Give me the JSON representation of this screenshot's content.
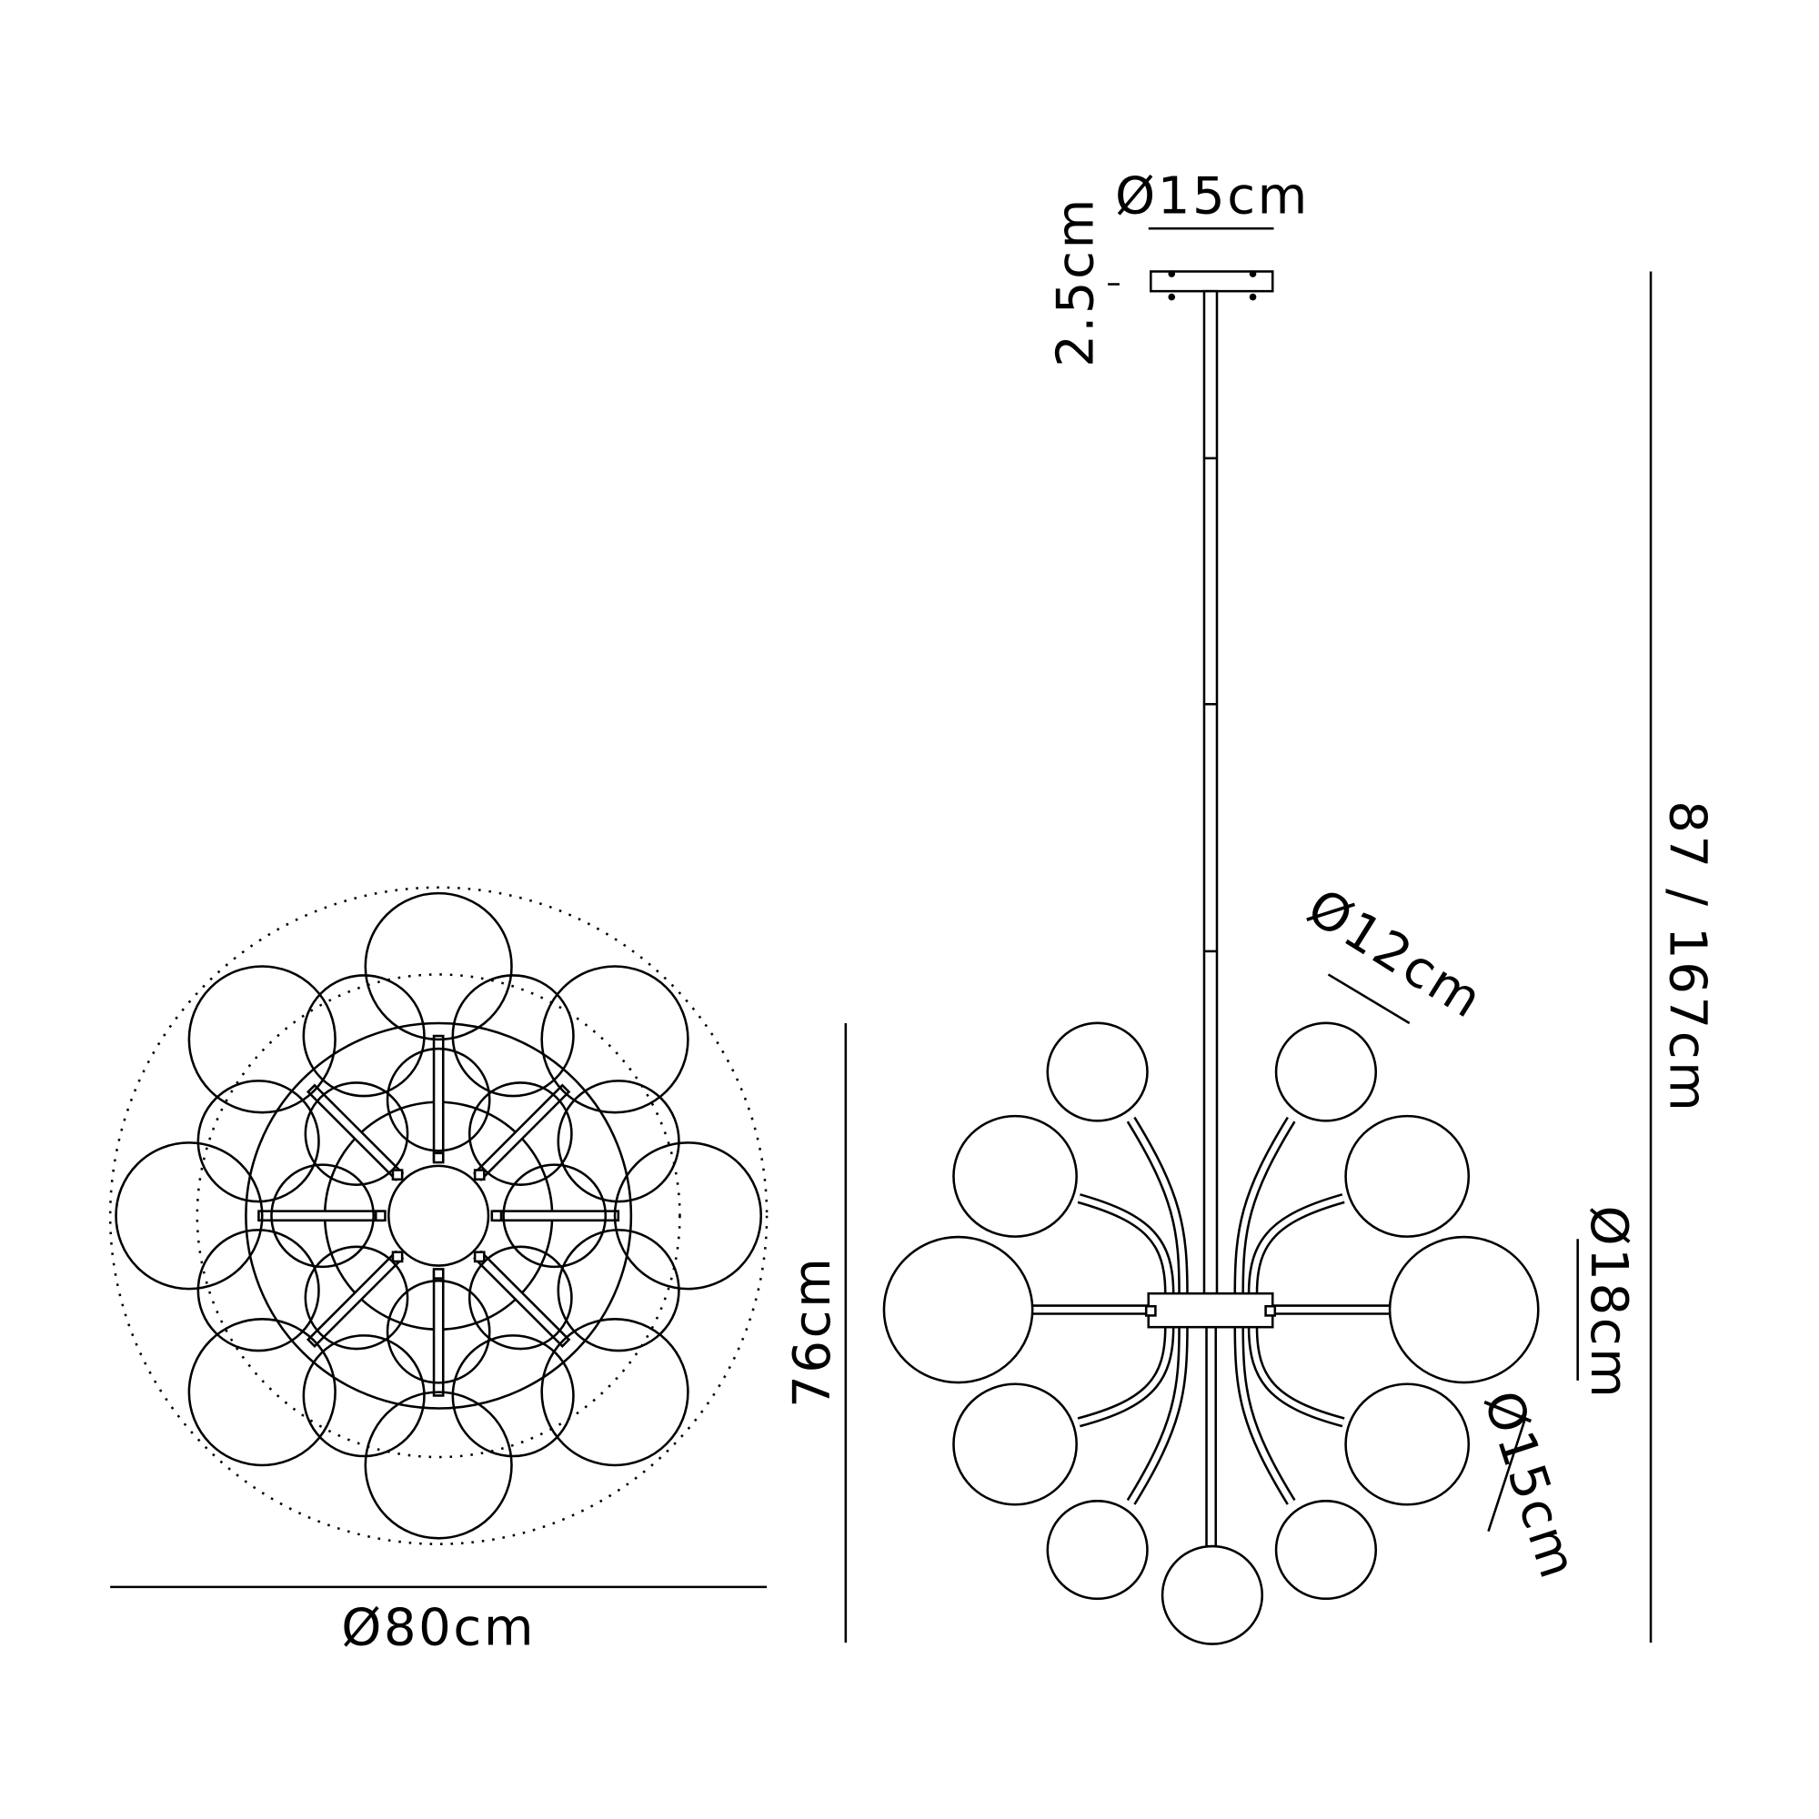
{
  "dimensions": {
    "overall_diameter": "Ø80cm",
    "body_height": "76cm",
    "total_drop": "87 / 167cm",
    "canopy_diameter": "Ø15cm",
    "canopy_height": "2.5cm",
    "small_globe": "Ø12cm",
    "large_globe": "Ø18cm",
    "medium_globe": "Ø15cm"
  }
}
